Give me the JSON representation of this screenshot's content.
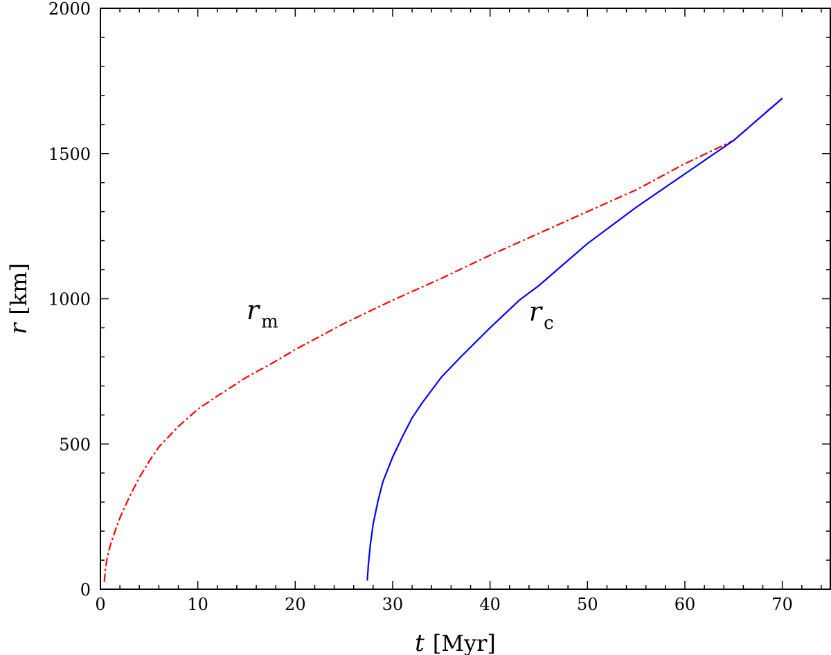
{
  "chart_data": {
    "type": "line",
    "title": "",
    "xlabel": {
      "symbol": "t",
      "unit": "[Myr]"
    },
    "ylabel": {
      "symbol": "r",
      "unit": "[km]"
    },
    "xlim": [
      0,
      75
    ],
    "ylim": [
      0,
      2000
    ],
    "x_ticks": [
      0,
      10,
      20,
      30,
      40,
      50,
      60,
      70
    ],
    "y_ticks": [
      0,
      500,
      1000,
      1500,
      2000
    ],
    "x_minor_step": 2,
    "y_minor_step": 100,
    "grid": false,
    "series": [
      {
        "label_main": "r",
        "label_sub": "m",
        "label_anchor": [
          15,
          930
        ],
        "color": "#ff0000",
        "dash": "dashdot",
        "x": [
          0.4,
          0.5,
          0.7,
          1,
          1.5,
          2,
          3,
          4,
          5,
          6,
          8,
          10,
          12,
          15,
          18,
          20,
          25,
          30,
          35,
          40,
          45,
          50,
          55,
          60,
          65,
          70
        ],
        "y": [
          25,
          65,
          110,
          150,
          200,
          245,
          320,
          385,
          440,
          490,
          560,
          620,
          665,
          730,
          785,
          825,
          915,
          995,
          1070,
          1150,
          1225,
          1300,
          1375,
          1465,
          1545,
          1690
        ]
      },
      {
        "label_main": "r",
        "label_sub": "c",
        "label_anchor": [
          44,
          925
        ],
        "color": "#0000ff",
        "dash": "solid",
        "x": [
          27.4,
          27.5,
          27.7,
          28,
          28.5,
          29,
          30,
          31,
          32,
          33,
          35,
          37,
          40,
          43,
          45,
          50,
          55,
          60,
          65,
          70
        ],
        "y": [
          30,
          80,
          150,
          225,
          305,
          370,
          455,
          525,
          590,
          640,
          730,
          800,
          900,
          995,
          1045,
          1190,
          1315,
          1430,
          1545,
          1690
        ]
      }
    ]
  }
}
